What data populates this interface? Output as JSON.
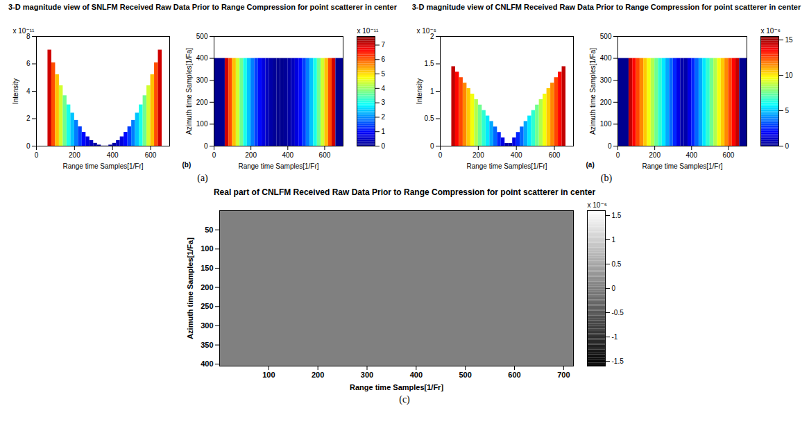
{
  "chart_data": [
    {
      "type": "surface",
      "title": "3-D magnitude view of SNLFM Received Raw Data Prior to Range Compression for point scatterer in center",
      "caption": "(a)",
      "inner_label": "(b)",
      "x_label": "Range time Samples[1/Fr]",
      "y_label": "Azimuth time Samples[1/Fa]",
      "z_label": "Intensity",
      "xlim": [
        0,
        700
      ],
      "xticks": [
        0,
        200,
        400,
        600
      ],
      "ylim": [
        0,
        500
      ],
      "yticks": [
        0,
        100,
        200,
        300,
        400,
        500
      ],
      "zlim": [
        0,
        8e-11
      ],
      "zticks": [
        {
          "value": 0,
          "label": "0"
        },
        {
          "value": 2e-11,
          "label": "2"
        },
        {
          "value": 4e-11,
          "label": "4"
        },
        {
          "value": 6e-11,
          "label": "6"
        },
        {
          "value": 8e-11,
          "label": "8"
        }
      ],
      "z_multiplier": "x 10⁻¹¹",
      "azimuth_span": [
        0,
        400
      ],
      "bins": [
        0,
        60,
        80,
        100,
        120,
        140,
        160,
        180,
        200,
        220,
        240,
        260,
        280,
        300,
        320,
        340,
        360,
        380,
        400,
        420,
        440,
        460,
        480,
        500,
        520,
        540,
        560,
        580,
        600,
        620,
        640,
        660,
        700
      ],
      "values": [
        0,
        7.01e-11,
        6.08e-11,
        5.21e-11,
        4.41e-11,
        3.68e-11,
        3.01e-11,
        2.41e-11,
        1.88e-11,
        1.41e-11,
        1.01e-11,
        6.8e-12,
        4.1e-12,
        2.1e-12,
        8e-13,
        1e-13,
        1e-13,
        8e-13,
        2.1e-12,
        4.1e-12,
        6.8e-12,
        1.01e-11,
        1.41e-11,
        1.88e-11,
        2.41e-11,
        3.01e-11,
        3.68e-11,
        4.41e-11,
        5.21e-11,
        6.08e-11,
        7.01e-11,
        0
      ],
      "color": "jet",
      "colorbar_range": [
        0,
        7.6e-11
      ],
      "colorbar_ticks": [
        {
          "value": 0,
          "label": "0"
        },
        {
          "value": 1e-11,
          "label": "1"
        },
        {
          "value": 2e-11,
          "label": "2"
        },
        {
          "value": 3e-11,
          "label": "3"
        },
        {
          "value": 4e-11,
          "label": "4"
        },
        {
          "value": 5e-11,
          "label": "5"
        },
        {
          "value": 6e-11,
          "label": "6"
        },
        {
          "value": 7e-11,
          "label": "7"
        }
      ],
      "colorbar_multiplier": "x 10⁻¹¹"
    },
    {
      "type": "surface",
      "title": "3-D magnitude view of CNLFM Received Raw Data Prior to Range Compression for point scatterer in center",
      "caption": "(b)",
      "inner_label": "(a)",
      "x_label": "Range time Samples[1/Fr]",
      "y_label": "Azimuth time Samples[1/Fa]",
      "z_label": "Intensity",
      "xlim": [
        0,
        700
      ],
      "xticks": [
        0,
        200,
        400,
        600
      ],
      "ylim": [
        0,
        500
      ],
      "yticks": [
        0,
        100,
        200,
        300,
        400,
        500
      ],
      "zlim": [
        0,
        2e-05
      ],
      "zticks": [
        {
          "value": 0,
          "label": "0"
        },
        {
          "value": 5e-06,
          "label": "0.5"
        },
        {
          "value": 1e-05,
          "label": "1"
        },
        {
          "value": 1.5e-05,
          "label": "1.5"
        },
        {
          "value": 2e-05,
          "label": "2"
        }
      ],
      "z_multiplier": "x 10⁻⁵",
      "azimuth_span": [
        0,
        400
      ],
      "bins": [
        0,
        60,
        80,
        100,
        120,
        140,
        160,
        180,
        200,
        220,
        240,
        260,
        280,
        300,
        320,
        340,
        360,
        380,
        400,
        420,
        440,
        460,
        480,
        500,
        520,
        540,
        560,
        580,
        600,
        620,
        640,
        660,
        700
      ],
      "values": [
        0,
        1.45e-05,
        1.35e-05,
        1.25e-05,
        1.15e-05,
        1.05e-05,
        9.5e-06,
        8.5e-06,
        7.5e-06,
        6.5e-06,
        5.5e-06,
        4.5e-06,
        3.5e-06,
        2.5e-06,
        1.5e-06,
        5e-07,
        5e-07,
        1.5e-06,
        2.5e-06,
        3.5e-06,
        4.5e-06,
        5.5e-06,
        6.5e-06,
        7.5e-06,
        8.5e-06,
        9.5e-06,
        1.05e-05,
        1.15e-05,
        1.25e-05,
        1.35e-05,
        1.45e-05,
        0
      ],
      "color": "jet",
      "colorbar_range": [
        0,
        1.55e-05
      ],
      "colorbar_ticks": [
        {
          "value": 0,
          "label": "0"
        },
        {
          "value": 5e-06,
          "label": "5"
        },
        {
          "value": 1e-05,
          "label": "10"
        },
        {
          "value": 1.5e-05,
          "label": "15"
        }
      ],
      "colorbar_multiplier": "x 10⁻⁶"
    },
    {
      "type": "heatmap",
      "title": "Real part of CNLFM Received Raw Data Prior to Range Compression for point scatterer in center",
      "caption": "(c)",
      "x_label": "Range time Samples[1/Fr]",
      "y_label": "Azimuth time Samples[1/Fa]",
      "xlim": [
        0,
        720
      ],
      "xticks": [
        100,
        200,
        300,
        400,
        500,
        600,
        700
      ],
      "ylim": [
        0,
        405
      ],
      "yticks": [
        50,
        100,
        150,
        200,
        250,
        300,
        350,
        400
      ],
      "cells": [
        {
          "x1": 0,
          "x2": 720,
          "y1": 0,
          "y2": 405,
          "value": 0
        }
      ],
      "color": "gray",
      "colorbar_range": [
        -1.6e-05,
        1.6e-05
      ],
      "colorbar_ticks": [
        {
          "value": -1.5e-05,
          "label": "-1.5"
        },
        {
          "value": -1e-05,
          "label": "-1"
        },
        {
          "value": -5e-06,
          "label": "-0.5"
        },
        {
          "value": 0,
          "label": "0"
        },
        {
          "value": 5e-06,
          "label": "0.5"
        },
        {
          "value": 1e-05,
          "label": "1"
        },
        {
          "value": 1.5e-05,
          "label": "1.5"
        }
      ],
      "colorbar_multiplier": "x 10⁻⁵"
    }
  ]
}
